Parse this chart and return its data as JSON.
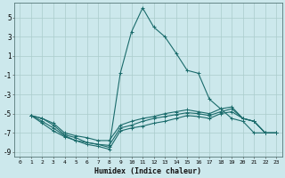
{
  "xlabel": "Humidex (Indice chaleur)",
  "background_color": "#cce8ec",
  "grid_color": "#aacccc",
  "line_color": "#1a6b6b",
  "xlim": [
    -0.5,
    23.5
  ],
  "ylim": [
    -9.5,
    6.5
  ],
  "xticks": [
    0,
    1,
    2,
    3,
    4,
    5,
    6,
    7,
    8,
    9,
    10,
    11,
    12,
    13,
    14,
    15,
    16,
    17,
    18,
    19,
    20,
    21,
    22,
    23
  ],
  "yticks": [
    -9,
    -7,
    -5,
    -3,
    -1,
    1,
    3,
    5
  ],
  "series": [
    [
      null,
      -5.2,
      -5.5,
      -6.2,
      -7.2,
      -7.5,
      -8.0,
      -8.2,
      -8.5,
      -0.8,
      3.5,
      6.0,
      4.0,
      3.0,
      1.3,
      -0.5,
      -0.8,
      -3.5,
      -4.5,
      -5.5,
      -5.8,
      -7.0,
      -7.0,
      null
    ],
    [
      null,
      -5.2,
      -5.5,
      -6.0,
      -7.0,
      -7.3,
      -7.5,
      -7.8,
      -7.8,
      -6.2,
      -5.8,
      -5.5,
      -5.3,
      -5.0,
      -4.8,
      -4.6,
      -4.8,
      -5.0,
      -4.5,
      -4.3,
      -5.5,
      -5.8,
      -7.0,
      -7.0
    ],
    [
      null,
      -5.2,
      -5.8,
      -6.5,
      -7.3,
      -7.8,
      -8.0,
      -8.2,
      -8.3,
      -6.5,
      -6.2,
      -5.8,
      -5.5,
      -5.3,
      -5.1,
      -4.9,
      -5.0,
      -5.2,
      -4.8,
      -4.5,
      -5.5,
      -5.8,
      -7.0,
      -7.0
    ],
    [
      null,
      -5.2,
      -6.0,
      -6.8,
      -7.4,
      -7.8,
      -8.2,
      -8.4,
      -8.7,
      -6.8,
      -6.5,
      -6.3,
      -6.0,
      -5.8,
      -5.5,
      -5.2,
      -5.3,
      -5.5,
      -5.0,
      -4.8,
      -5.5,
      -5.8,
      -7.0,
      -7.0
    ]
  ],
  "figsize": [
    3.2,
    2.0
  ],
  "dpi": 100
}
